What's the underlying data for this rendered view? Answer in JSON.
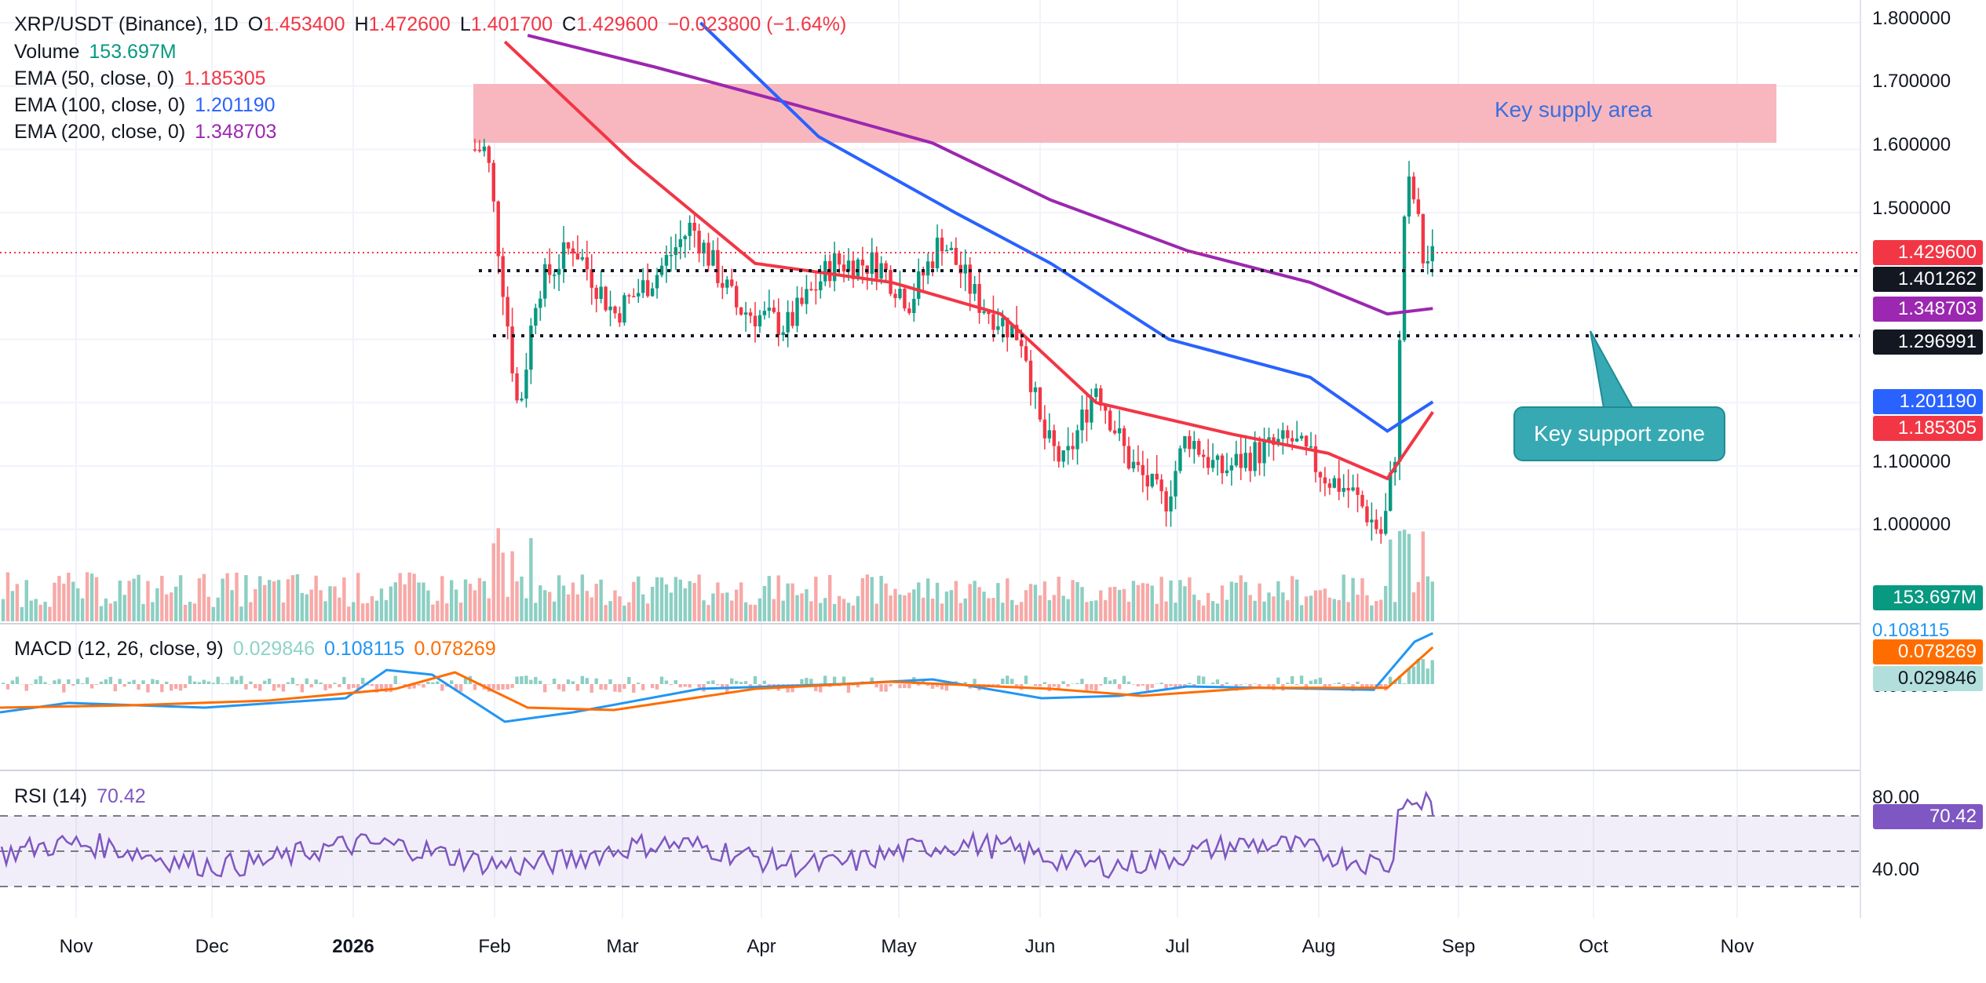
{
  "header": {
    "symbol": "XRP/USDT (Binance), 1D",
    "open_label": "O",
    "open": "1.453400",
    "high_label": "H",
    "high": "1.472600",
    "low_label": "L",
    "low": "1.401700",
    "close_label": "C",
    "close": "1.429600",
    "change": "−0.023800 (−1.64%)"
  },
  "legends": {
    "volume": {
      "label": "Volume",
      "value": "153.697M"
    },
    "ema50": {
      "label": "EMA (50, close, 0)",
      "value": "1.185305"
    },
    "ema100": {
      "label": "EMA (100, close, 0)",
      "value": "1.201190"
    },
    "ema200": {
      "label": "EMA (200, close, 0)",
      "value": "1.348703"
    },
    "macd": {
      "label": "MACD (12, 26, close, 9)",
      "hist": "0.029846",
      "macd": "0.108115",
      "signal": "0.078269"
    },
    "rsi": {
      "label": "RSI (14)",
      "value": "70.42"
    }
  },
  "price_axis": [
    "1.800000",
    "1.700000",
    "1.600000",
    "1.500000",
    "1.100000",
    "1.000000"
  ],
  "rsi_axis": [
    "80.00",
    "40.00"
  ],
  "macd_axis_partial": [
    "0.108115",
    "0.000000"
  ],
  "time_axis": [
    "Nov",
    "Dec",
    "2026",
    "Feb",
    "Mar",
    "Apr",
    "May",
    "Jun",
    "Jul",
    "Aug",
    "Sep",
    "Oct",
    "Nov"
  ],
  "price_tags": {
    "last": "1.429600",
    "level_upper": "1.401262",
    "ema200": "1.348703",
    "level_lower": "1.296991",
    "ema100": "1.201190",
    "ema50": "1.185305",
    "volume": "153.697M",
    "macd_signal": "0.078269",
    "macd_hist": "0.029846",
    "rsi": "70.42"
  },
  "annotations": {
    "supply": "Key supply area",
    "support": "Key support zone"
  },
  "colors": {
    "up": "#089981",
    "down": "#f23645",
    "ema50": "#f23645",
    "ema100": "#2962ff",
    "ema200": "#9c27b0",
    "macd": "#2196f3",
    "signal": "#ff6d00",
    "rsi": "#7e57c2",
    "supply_zone": "#f8b3bb",
    "callout": "#37a9b3"
  },
  "chart_data": {
    "type": "candlestick",
    "x_range": [
      "2025-10-17",
      "2026-11-30"
    ],
    "y_range": [
      0.95,
      1.82
    ],
    "key_levels": [
      1.401262,
      1.296991
    ],
    "supply_zone": [
      1.605,
      1.695
    ],
    "last_close": 1.4296,
    "ema_last": {
      "ema50": 1.185305,
      "ema100": 1.20119,
      "ema200": 1.348703
    },
    "macd_last": {
      "macd": 0.108115,
      "signal": 0.078269,
      "hist": 0.029846
    },
    "rsi_last": 70.42,
    "rsi_bands": [
      70,
      50,
      30
    ],
    "price_path": [
      [
        "2026-02-01",
        1.6
      ],
      [
        "2026-02-05",
        1.36
      ],
      [
        "2026-02-08",
        1.18
      ],
      [
        "2026-02-12",
        1.38
      ],
      [
        "2026-02-20",
        1.45
      ],
      [
        "2026-03-01",
        1.34
      ],
      [
        "2026-03-10",
        1.4
      ],
      [
        "2026-03-18",
        1.48
      ],
      [
        "2026-03-28",
        1.35
      ],
      [
        "2026-04-08",
        1.32
      ],
      [
        "2026-04-18",
        1.42
      ],
      [
        "2026-04-28",
        1.42
      ],
      [
        "2026-05-05",
        1.36
      ],
      [
        "2026-05-12",
        1.46
      ],
      [
        "2026-05-20",
        1.36
      ],
      [
        "2026-05-30",
        1.3
      ],
      [
        "2026-06-03",
        1.15
      ],
      [
        "2026-06-08",
        1.1
      ],
      [
        "2026-06-15",
        1.23
      ],
      [
        "2026-06-22",
        1.11
      ],
      [
        "2026-06-30",
        1.04
      ],
      [
        "2026-07-05",
        1.15
      ],
      [
        "2026-07-12",
        1.09
      ],
      [
        "2026-07-20",
        1.12
      ],
      [
        "2026-07-28",
        1.14
      ],
      [
        "2026-08-05",
        1.08
      ],
      [
        "2026-08-10",
        1.06
      ],
      [
        "2026-08-17",
        0.99
      ],
      [
        "2026-08-20",
        1.14
      ],
      [
        "2026-08-22",
        1.55
      ],
      [
        "2026-08-24",
        1.52
      ],
      [
        "2026-08-26",
        1.42
      ],
      [
        "2026-08-28",
        1.43
      ]
    ]
  }
}
